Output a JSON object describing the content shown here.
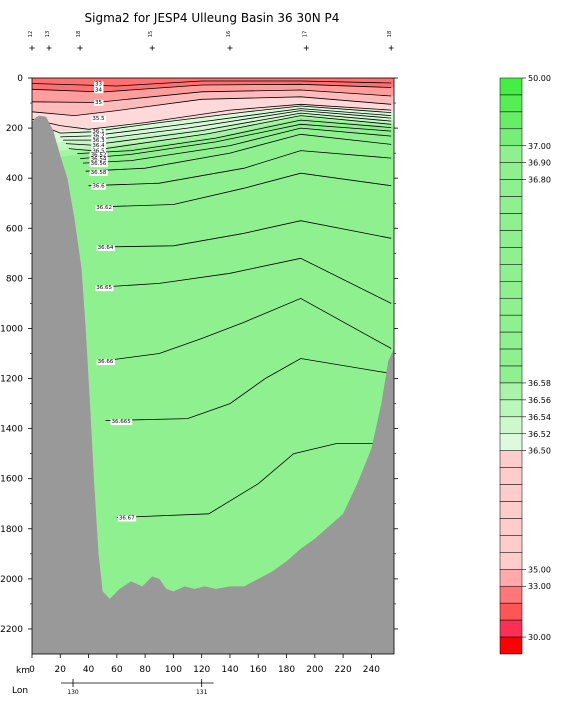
{
  "chart_data": {
    "type": "heatmap",
    "title": "Sigma2 for JESP4 Ulleung Basin 36 30N P4",
    "xlabel": "km",
    "x_ticks": [
      0,
      20,
      40,
      60,
      80,
      100,
      120,
      140,
      160,
      180,
      200,
      220,
      240
    ],
    "xlim": [
      0,
      256
    ],
    "y_ticks": [
      0,
      200,
      400,
      600,
      800,
      1000,
      1200,
      1400,
      1600,
      1800,
      2000,
      2200
    ],
    "ylim": [
      0,
      2300
    ],
    "lon_label": "Lon",
    "lon_ticks": [
      {
        "label": "130",
        "km": 29
      },
      {
        "label": "131",
        "km": 120
      }
    ],
    "stations": [
      {
        "label": "12",
        "km": 0
      },
      {
        "label": "13",
        "km": 12
      },
      {
        "label": "18",
        "km": 34
      },
      {
        "label": "15",
        "km": 85
      },
      {
        "label": "16",
        "km": 140
      },
      {
        "label": "17",
        "km": 194
      },
      {
        "label": "18",
        "km": 254
      }
    ],
    "contour_labels": [
      {
        "text": "33",
        "km": 47,
        "depth": 22
      },
      {
        "text": "34",
        "km": 47,
        "depth": 45
      },
      {
        "text": "35",
        "km": 47,
        "depth": 95
      },
      {
        "text": "35.5",
        "km": 47,
        "depth": 160
      },
      {
        "text": "36.1",
        "km": 47,
        "depth": 212
      },
      {
        "text": "36.2",
        "km": 47,
        "depth": 230
      },
      {
        "text": "36.3",
        "km": 47,
        "depth": 248
      },
      {
        "text": "36.4",
        "km": 47,
        "depth": 268
      },
      {
        "text": "36.5",
        "km": 47,
        "depth": 290
      },
      {
        "text": "36.52",
        "km": 47,
        "depth": 305
      },
      {
        "text": "36.54",
        "km": 47,
        "depth": 322
      },
      {
        "text": "36.56",
        "km": 47,
        "depth": 340
      },
      {
        "text": "36.58",
        "km": 47,
        "depth": 375
      },
      {
        "text": "36.6",
        "km": 47,
        "depth": 430
      },
      {
        "text": "36.62",
        "km": 51,
        "depth": 515
      },
      {
        "text": "36.64",
        "km": 52,
        "depth": 675
      },
      {
        "text": "36.65",
        "km": 51,
        "depth": 835
      },
      {
        "text": "36.66",
        "km": 52,
        "depth": 1130
      },
      {
        "text": "36.665",
        "km": 63,
        "depth": 1370
      },
      {
        "text": "36.67",
        "km": 67,
        "depth": 1755
      }
    ],
    "colorbar": {
      "labels": [
        {
          "text": "50.00",
          "level": 0
        },
        {
          "text": "37.00",
          "level": 4
        },
        {
          "text": "36.90",
          "level": 5
        },
        {
          "text": "36.80",
          "level": 6
        },
        {
          "text": "36.58",
          "level": 18
        },
        {
          "text": "36.56",
          "level": 19
        },
        {
          "text": "36.54",
          "level": 20
        },
        {
          "text": "36.52",
          "level": 21
        },
        {
          "text": "36.50",
          "level": 22
        },
        {
          "text": "35.00",
          "level": 29
        },
        {
          "text": "33.00",
          "level": 30
        },
        {
          "text": "30.00",
          "level": 33
        }
      ],
      "levels": 34,
      "colors_top_to_bottom": [
        "#44ee44",
        "#55ee55",
        "#66ee66",
        "#77ee77",
        "#8ff08f",
        "#8ff08f",
        "#8ff08f",
        "#8ff08f",
        "#8ff08f",
        "#8ff08f",
        "#8ff08f",
        "#8ff08f",
        "#8ff08f",
        "#8ff08f",
        "#8ff08f",
        "#8ff08f",
        "#8ff08f",
        "#8ff08f",
        "#aaf4aa",
        "#bbf6bb",
        "#ccf8cc",
        "#ddfadd",
        "#ffcccc",
        "#ffcccc",
        "#ffcccc",
        "#ffcccc",
        "#ffcccc",
        "#ffcccc",
        "#ffcccc",
        "#ffaaaa",
        "#ff7777",
        "#ff5555",
        "#ff2e55",
        "#ff0000"
      ]
    },
    "colors": {
      "deep_water": "#8ff08f",
      "layer_636": "#a5f4a5",
      "layer_365": "#bff7bf",
      "layer_364": "#d6fad6",
      "layer_360": "#ffd9d9",
      "layer_355": "#ffbbbb",
      "layer_350": "#ff9c9c",
      "layer_surface": "#ff7070",
      "bathymetry": "#999999"
    }
  }
}
